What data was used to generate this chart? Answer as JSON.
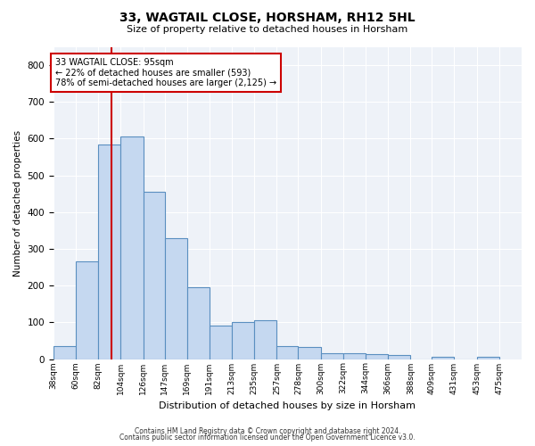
{
  "title": "33, WAGTAIL CLOSE, HORSHAM, RH12 5HL",
  "subtitle": "Size of property relative to detached houses in Horsham",
  "xlabel": "Distribution of detached houses by size in Horsham",
  "ylabel": "Number of detached properties",
  "footer_line1": "Contains HM Land Registry data © Crown copyright and database right 2024.",
  "footer_line2": "Contains public sector information licensed under the Open Government Licence v3.0.",
  "annotation_line1": "33 WAGTAIL CLOSE: 95sqm",
  "annotation_line2": "← 22% of detached houses are smaller (593)",
  "annotation_line3": "78% of semi-detached houses are larger (2,125) →",
  "property_size": 95,
  "bar_left_edges": [
    38,
    60,
    82,
    104,
    126,
    147,
    169,
    191,
    213,
    235,
    257,
    278,
    300,
    322,
    344,
    366,
    388,
    409,
    431,
    453
  ],
  "bar_widths": [
    22,
    22,
    22,
    22,
    21,
    22,
    22,
    22,
    22,
    22,
    21,
    22,
    22,
    22,
    22,
    22,
    21,
    22,
    22,
    22
  ],
  "bar_heights": [
    35,
    265,
    585,
    605,
    455,
    328,
    196,
    90,
    100,
    105,
    35,
    32,
    15,
    15,
    13,
    10,
    0,
    6,
    0,
    6
  ],
  "tick_labels": [
    "38sqm",
    "60sqm",
    "82sqm",
    "104sqm",
    "126sqm",
    "147sqm",
    "169sqm",
    "191sqm",
    "213sqm",
    "235sqm",
    "257sqm",
    "278sqm",
    "300sqm",
    "322sqm",
    "344sqm",
    "366sqm",
    "388sqm",
    "409sqm",
    "431sqm",
    "453sqm",
    "475sqm"
  ],
  "bar_color": "#c5d8f0",
  "bar_edge_color": "#5a8fc0",
  "line_color": "#cc0000",
  "annotation_box_color": "#cc0000",
  "background_color": "#ffffff",
  "plot_bg_color": "#eef2f8",
  "grid_color": "#ffffff",
  "ylim": [
    0,
    850
  ],
  "yticks": [
    0,
    100,
    200,
    300,
    400,
    500,
    600,
    700,
    800
  ]
}
